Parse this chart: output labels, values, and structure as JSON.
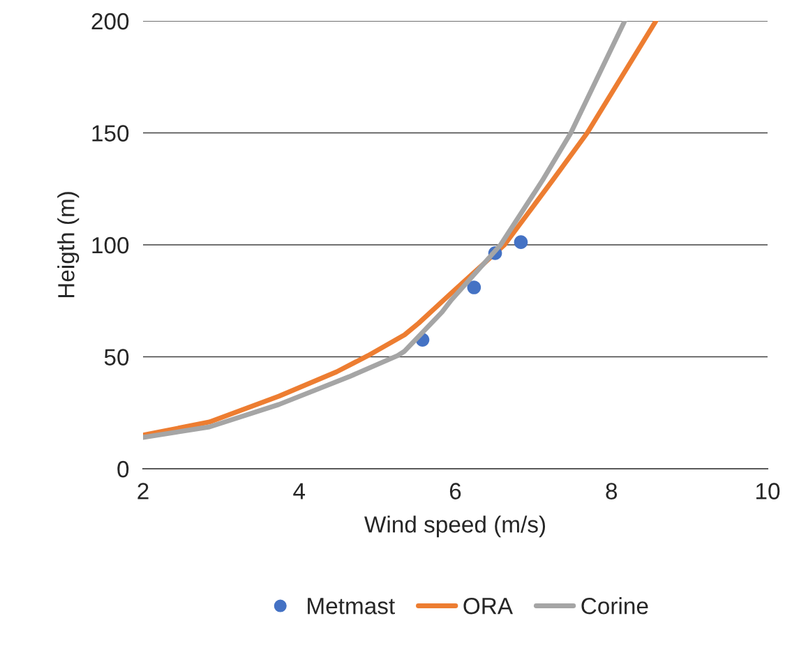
{
  "chart_data": {
    "type": "scatter",
    "xlabel": "Wind speed (m/s)",
    "ylabel": "Heigth (m)",
    "xlim": [
      2,
      10
    ],
    "xticks": [
      2,
      4,
      6,
      8,
      10
    ],
    "ylim": [
      0,
      200
    ],
    "yticks": [
      0,
      50,
      100,
      150,
      200
    ],
    "grid": "y",
    "legend": "bottom",
    "series": [
      {
        "name": "Metmast",
        "marker": "circle",
        "color": "#4472c4",
        "x": [
          5.58,
          6.24,
          6.51,
          6.84
        ],
        "values": [
          57.6,
          81,
          96.3,
          101.2
        ]
      },
      {
        "name": "ORA",
        "type": "line",
        "marker": "none",
        "color": "#ed7d31",
        "x": [
          2,
          2.85,
          3.74,
          4.48,
          4.88,
          5.35,
          5.53,
          5.95,
          6.63,
          7.25,
          7.69,
          8.57
        ],
        "values": [
          15,
          20.9,
          32.4,
          43.3,
          50.5,
          59.8,
          65,
          78.5,
          100,
          129,
          150,
          200
        ]
      },
      {
        "name": "Corine",
        "type": "line",
        "marker": "none",
        "color": "#a5a5a5",
        "x": [
          2,
          2.85,
          3.74,
          4.64,
          5.26,
          5.35,
          5.83,
          5.95,
          6.58,
          7.12,
          7.48,
          8.17
        ],
        "values": [
          14,
          18.7,
          28.7,
          41.1,
          50.5,
          52.5,
          70,
          75.4,
          100,
          129,
          150,
          200
        ]
      }
    ]
  }
}
